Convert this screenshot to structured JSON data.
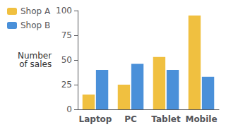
{
  "chart_data": {
    "type": "bar",
    "categories": [
      "Laptop",
      "PC",
      "Tablet",
      "Mobile"
    ],
    "series": [
      {
        "name": "Shop A",
        "color": "#F0C040",
        "values": [
          15,
          25,
          53,
          95
        ]
      },
      {
        "name": "Shop B",
        "color": "#4A90D9",
        "values": [
          40,
          46,
          40,
          33
        ]
      }
    ],
    "ylabel": "Number\nof sales",
    "ylim": [
      0,
      100
    ],
    "yticks": [
      0,
      25,
      50,
      75,
      100
    ],
    "grid": false,
    "legend": "upper left"
  }
}
